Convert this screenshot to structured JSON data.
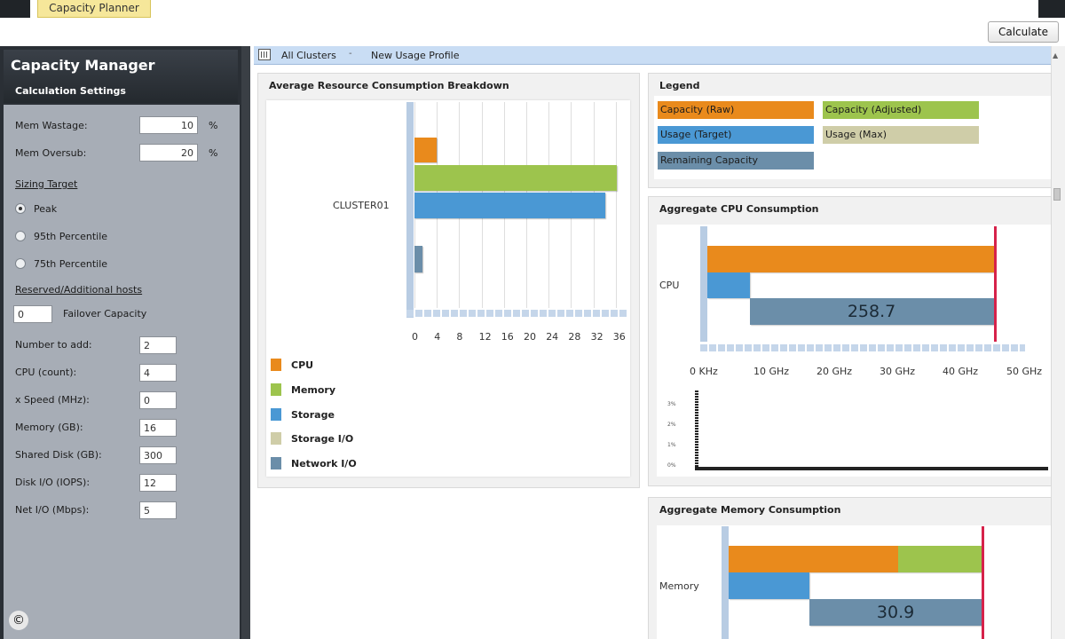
{
  "top": {
    "tab_label": "Capacity Planner",
    "calculate_label": "Calculate"
  },
  "sidebar": {
    "title": "Capacity Manager",
    "subtitle": "Calculation Settings",
    "mem_wastage": {
      "label": "Mem Wastage:",
      "value": "10",
      "unit": "%"
    },
    "mem_oversub": {
      "label": "Mem Oversub:",
      "value": "20",
      "unit": "%"
    },
    "sizing_target": {
      "label": "Sizing Target",
      "options": [
        "Peak",
        "95th Percentile",
        "75th Percentile"
      ],
      "selected": "Peak"
    },
    "reserved": {
      "label": "Reserved/Additional hosts",
      "failover_value": "0",
      "failover_label": "Failover Capacity"
    },
    "fields": [
      {
        "label": "Number to add:",
        "value": "2"
      },
      {
        "label": "CPU (count):",
        "value": "4"
      },
      {
        "label": "x Speed (MHz):",
        "value": "0"
      },
      {
        "label": "Memory (GB):",
        "value": "16"
      },
      {
        "label": "Shared Disk (GB):",
        "value": "300"
      },
      {
        "label": "Disk I/O (IOPS):",
        "value": "12"
      },
      {
        "label": "Net I/O (Mbps):",
        "value": "5"
      }
    ],
    "copyright_symbol": "©"
  },
  "breadcrumb": {
    "item1": "All Clusters",
    "arrow": "-",
    "item2": "New Usage Profile"
  },
  "breakdown": {
    "title": "Average Resource Consumption Breakdown",
    "category_label": "CLUSTER01",
    "legend": [
      {
        "name": "CPU",
        "color": "#e98a1c"
      },
      {
        "name": "Memory",
        "color": "#9dc44d"
      },
      {
        "name": "Storage",
        "color": "#4a98d4"
      },
      {
        "name": "Storage I/O",
        "color": "#cfcda8"
      },
      {
        "name": "Network I/O",
        "color": "#6b8ea9"
      }
    ]
  },
  "legend_panel": {
    "title": "Legend",
    "items": [
      {
        "name": "Capacity (Raw)",
        "color": "#e98a1c"
      },
      {
        "name": "Capacity (Adjusted)",
        "color": "#9dc44d"
      },
      {
        "name": "Usage (Target)",
        "color": "#4a98d4"
      },
      {
        "name": "Usage (Max)",
        "color": "#cfcda8"
      },
      {
        "name": "Remaining Capacity",
        "color": "#6b8ea9"
      }
    ]
  },
  "cpu_card": {
    "title": "Aggregate CPU Consumption",
    "category_label": "CPU",
    "remaining_label": "258.7",
    "mini_ticks": [
      "3%",
      "2%",
      "1%",
      "0%"
    ]
  },
  "mem_card": {
    "title": "Aggregate Memory Consumption",
    "category_label": "Memory",
    "remaining_label": "30.9"
  },
  "chart_data": [
    {
      "type": "bar",
      "orientation": "horizontal",
      "title": "Average Resource Consumption Breakdown",
      "categories": [
        "CLUSTER01"
      ],
      "xlim": [
        0,
        38
      ],
      "x_ticks": [
        0,
        4,
        8,
        12,
        16,
        20,
        24,
        28,
        32,
        36
      ],
      "series": [
        {
          "name": "CPU",
          "values": [
            4
          ],
          "color": "#e98a1c"
        },
        {
          "name": "Memory",
          "values": [
            36.2
          ],
          "color": "#9dc44d"
        },
        {
          "name": "Storage",
          "values": [
            34.2
          ],
          "color": "#4a98d4"
        },
        {
          "name": "Storage I/O",
          "values": [
            0
          ],
          "color": "#cfcda8"
        },
        {
          "name": "Network I/O",
          "values": [
            1.5
          ],
          "color": "#6b8ea9"
        }
      ],
      "legend": "bottom"
    },
    {
      "type": "bar",
      "orientation": "horizontal",
      "title": "Aggregate CPU Consumption",
      "categories": [
        "CPU"
      ],
      "x_ticks": [
        "0 KHz",
        "10 GHz",
        "20 GHz",
        "30 GHz",
        "40 GHz",
        "50 GHz"
      ],
      "xlim": [
        0,
        50
      ],
      "limit_line": 44.8,
      "rows": [
        {
          "segments": [
            {
              "name": "Capacity (Raw)",
              "from": 0,
              "to": 44.8,
              "color": "#e98a1c"
            }
          ]
        },
        {
          "segments": [
            {
              "name": "Usage (Target)",
              "from": 0,
              "to": 6.6,
              "color": "#4a98d4"
            }
          ]
        },
        {
          "segments": [
            {
              "name": "Remaining Capacity",
              "from": 6.6,
              "to": 44.8,
              "color": "#6b8ea9",
              "label": "258.7"
            }
          ]
        }
      ]
    },
    {
      "type": "bar",
      "orientation": "horizontal",
      "title": "Aggregate Memory Consumption",
      "categories": [
        "Memory"
      ],
      "xlim": [
        0,
        100
      ],
      "limit_line": 100,
      "rows": [
        {
          "segments": [
            {
              "name": "Capacity (Raw)",
              "from": 0,
              "to": 67,
              "color": "#e98a1c"
            },
            {
              "name": "Capacity (Adjusted)",
              "from": 67,
              "to": 100,
              "color": "#9dc44d"
            }
          ]
        },
        {
          "segments": [
            {
              "name": "Usage (Target)",
              "from": 0,
              "to": 32,
              "color": "#4a98d4"
            }
          ]
        },
        {
          "segments": [
            {
              "name": "Remaining Capacity",
              "from": 32,
              "to": 100,
              "color": "#6b8ea9",
              "label": "30.9"
            }
          ]
        }
      ]
    }
  ]
}
